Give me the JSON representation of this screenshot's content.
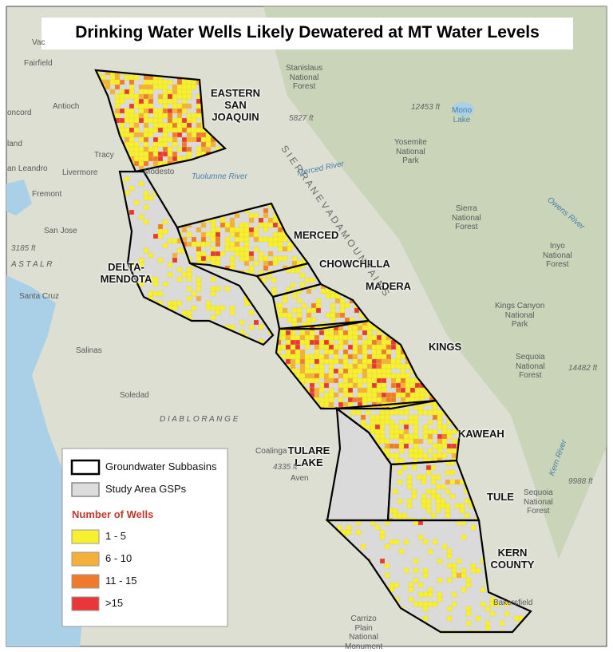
{
  "title": "Drinking Water Wells Likely Dewatered at MT Water Levels",
  "regions": [
    "EASTERN\nSAN\nJOAQUIN",
    "MERCED",
    "CHOWCHILLA",
    "MADERA",
    "KINGS",
    "KAWEAH",
    "TULE",
    "KERN\nCOUNTY",
    "TULARE\nLAKE",
    "DELTA-\nMENDOTA"
  ],
  "legend": {
    "boundaries": [
      "Groundwater Subbasins",
      "Study Area GSPs"
    ],
    "title": "Number of Wells",
    "items": [
      {
        "label": "1 - 5",
        "color": "#f7f02f"
      },
      {
        "label": "6 - 10",
        "color": "#f4b03a"
      },
      {
        "label": "11 - 15",
        "color": "#ef7a2c"
      },
      {
        "label": ">15",
        "color": "#e8363a"
      }
    ]
  },
  "basemap_labels": [
    "Vac",
    "Fairfield",
    "Antioch",
    "oncord",
    "land",
    "Tracy",
    "an Leandro",
    "Livermore",
    "Modesto",
    "Fremont",
    "San Jose",
    "3185 ft",
    "A S T A L   R",
    "Santa Cruz",
    "Salinas",
    "Soledad",
    "D I A B L O   R A N G E",
    "Coalinga",
    "4335 ft",
    "Aven",
    "Bakersfield",
    "Carrizo\nPlain\nNational\nMonument",
    "Stanislaus\nNational\nForest",
    "5827 ft",
    "12453 ft",
    "Mono\nLake",
    "Yosemite\nNational\nPark",
    "Tuolumne River",
    "Merced River",
    "Sierra\nNational\nForest",
    "Inyo\nNational\nForest",
    "Kings Canyon\nNational\nPark",
    "14482 ft",
    "Sequoia\nNational\nForest",
    "Sequoia\nNational\nForest",
    "9988 ft",
    "Owens River",
    "Kern River",
    "S I E R R A   N E V A D A   M O U N T A I N S"
  ]
}
